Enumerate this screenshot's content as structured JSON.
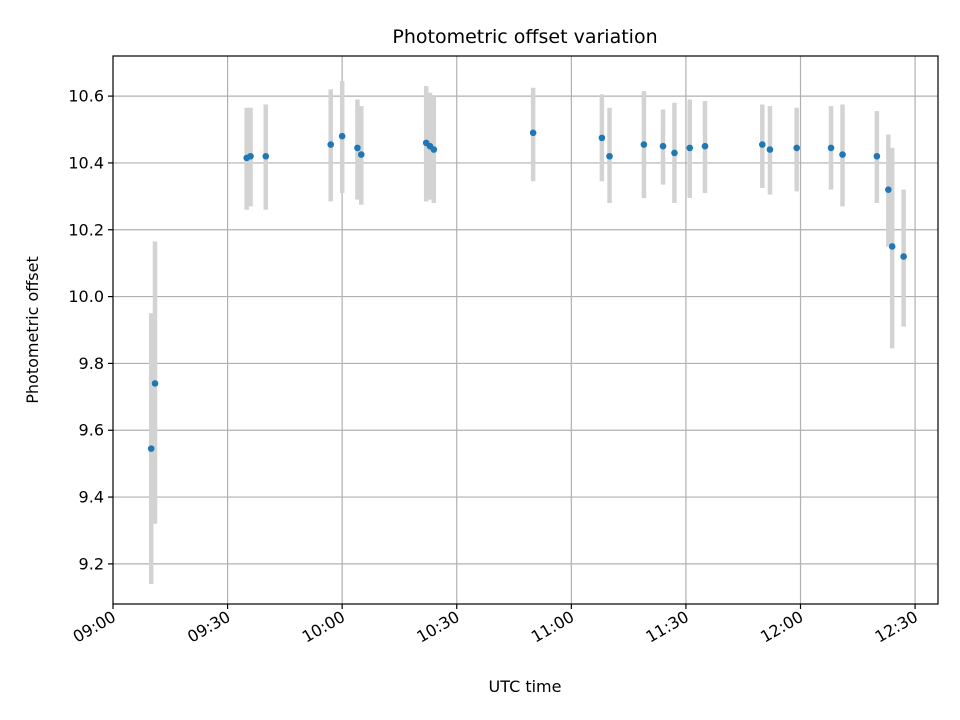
{
  "chart_data": {
    "type": "scatter",
    "title": "Photometric offset variation",
    "xlabel": "UTC time",
    "ylabel": "Photometric offset",
    "grid": true,
    "x_ticks": [
      "09:00",
      "09:30",
      "10:00",
      "10:30",
      "11:00",
      "11:30",
      "12:00",
      "12:30"
    ],
    "y_ticks": [
      "9.2",
      "9.4",
      "9.6",
      "9.8",
      "10.0",
      "10.2",
      "10.4",
      "10.6"
    ],
    "xlim": [
      "09:00",
      "12:36"
    ],
    "ylim": [
      9.08,
      10.72
    ],
    "point_color": "#1f77b4",
    "errorbar_color": "#d3d3d3",
    "series": [
      {
        "points": [
          {
            "x": "09:10",
            "y": 9.545,
            "lo": 9.14,
            "hi": 9.95
          },
          {
            "x": "09:11",
            "y": 9.74,
            "lo": 9.32,
            "hi": 10.165
          },
          {
            "x": "09:35",
            "y": 10.415,
            "lo": 10.26,
            "hi": 10.565
          },
          {
            "x": "09:36",
            "y": 10.42,
            "lo": 10.27,
            "hi": 10.565
          },
          {
            "x": "09:40",
            "y": 10.42,
            "lo": 10.26,
            "hi": 10.575
          },
          {
            "x": "09:57",
            "y": 10.455,
            "lo": 10.285,
            "hi": 10.62
          },
          {
            "x": "10:00",
            "y": 10.48,
            "lo": 10.31,
            "hi": 10.645
          },
          {
            "x": "10:04",
            "y": 10.445,
            "lo": 10.29,
            "hi": 10.59
          },
          {
            "x": "10:05",
            "y": 10.425,
            "lo": 10.275,
            "hi": 10.57
          },
          {
            "x": "10:22",
            "y": 10.46,
            "lo": 10.285,
            "hi": 10.63
          },
          {
            "x": "10:23",
            "y": 10.45,
            "lo": 10.29,
            "hi": 10.61
          },
          {
            "x": "10:24",
            "y": 10.44,
            "lo": 10.28,
            "hi": 10.6
          },
          {
            "x": "10:50",
            "y": 10.49,
            "lo": 10.345,
            "hi": 10.625
          },
          {
            "x": "11:08",
            "y": 10.475,
            "lo": 10.345,
            "hi": 10.605
          },
          {
            "x": "11:10",
            "y": 10.42,
            "lo": 10.28,
            "hi": 10.565
          },
          {
            "x": "11:19",
            "y": 10.455,
            "lo": 10.295,
            "hi": 10.615
          },
          {
            "x": "11:24",
            "y": 10.45,
            "lo": 10.335,
            "hi": 10.56
          },
          {
            "x": "11:27",
            "y": 10.43,
            "lo": 10.28,
            "hi": 10.58
          },
          {
            "x": "11:31",
            "y": 10.445,
            "lo": 10.295,
            "hi": 10.59
          },
          {
            "x": "11:35",
            "y": 10.45,
            "lo": 10.31,
            "hi": 10.585
          },
          {
            "x": "11:50",
            "y": 10.455,
            "lo": 10.325,
            "hi": 10.575
          },
          {
            "x": "11:52",
            "y": 10.44,
            "lo": 10.305,
            "hi": 10.57
          },
          {
            "x": "11:59",
            "y": 10.445,
            "lo": 10.315,
            "hi": 10.565
          },
          {
            "x": "12:08",
            "y": 10.445,
            "lo": 10.32,
            "hi": 10.57
          },
          {
            "x": "12:11",
            "y": 10.425,
            "lo": 10.27,
            "hi": 10.575
          },
          {
            "x": "12:20",
            "y": 10.42,
            "lo": 10.28,
            "hi": 10.555
          },
          {
            "x": "12:23",
            "y": 10.32,
            "lo": 10.15,
            "hi": 10.485
          },
          {
            "x": "12:24",
            "y": 10.15,
            "lo": 9.845,
            "hi": 10.445
          },
          {
            "x": "12:27",
            "y": 10.12,
            "lo": 9.91,
            "hi": 10.32
          }
        ]
      }
    ]
  }
}
